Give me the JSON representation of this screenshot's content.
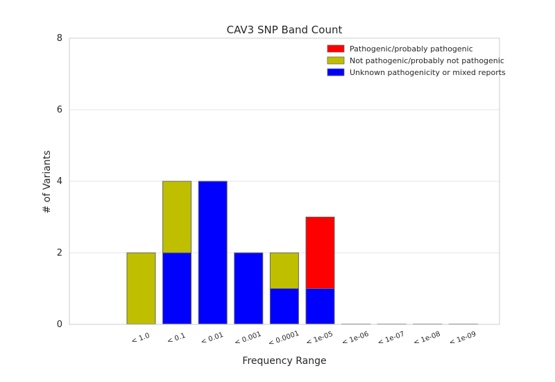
{
  "chart_data": {
    "type": "bar",
    "stacked": true,
    "title": "CAV3 SNP Band Count",
    "xlabel": "Frequency Range",
    "ylabel": "# of Variants",
    "ylim": [
      0,
      8
    ],
    "yticks": [
      "0",
      "2",
      "4",
      "6",
      "8"
    ],
    "grid": "horizontal",
    "legend_position": "top-right",
    "categories": [
      "< 1.0",
      "< 0.1",
      "< 0.01",
      "< 0.001",
      "< 0.0001",
      "< 1e-05",
      "< 1e-06",
      "< 1e-07",
      "< 1e-08",
      "< 1e-09"
    ],
    "series": [
      {
        "name": "Unknown pathogenicity or mixed reports",
        "color": "#0000ff",
        "values": [
          0,
          2,
          4,
          2,
          1,
          1,
          0,
          0,
          0,
          0
        ]
      },
      {
        "name": "Not pathogenic/probably not pathogenic",
        "color": "#bfbf00",
        "values": [
          2,
          2,
          0,
          0,
          1,
          0,
          0,
          0,
          0,
          0
        ]
      },
      {
        "name": "Pathogenic/probably pathogenic",
        "color": "#ff0000",
        "values": [
          0,
          0,
          0,
          0,
          0,
          2,
          0,
          0,
          0,
          0
        ]
      }
    ],
    "legend_order": [
      "Pathogenic/probably pathogenic",
      "Not pathogenic/probably not pathogenic",
      "Unknown pathogenicity or mixed reports"
    ]
  }
}
